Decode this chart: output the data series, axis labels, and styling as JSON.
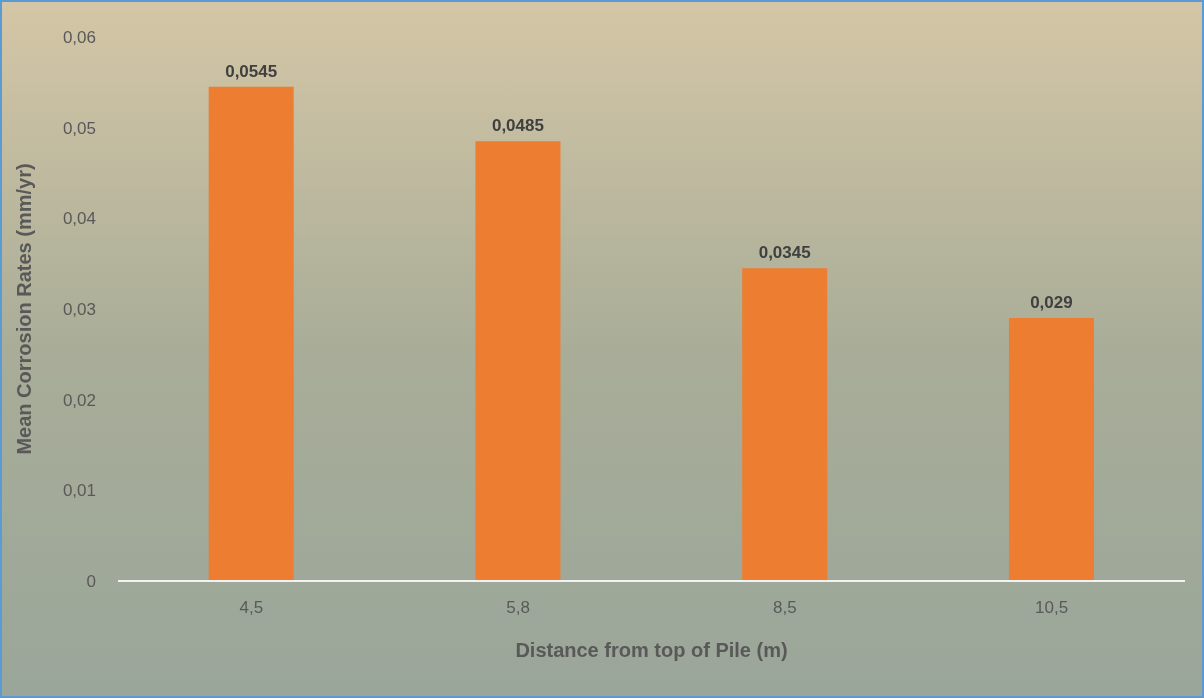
{
  "chart_data": {
    "type": "bar",
    "xlabel": "Distance from top of Pile (m)",
    "ylabel": "Mean Corrosion Rates (mm/yr)",
    "categories": [
      "4,5",
      "5,8",
      "8,5",
      "10,5"
    ],
    "values": [
      0.0545,
      0.0485,
      0.0345,
      0.029
    ],
    "value_labels": [
      "0,0545",
      "0,0485",
      "0,0345",
      "0,029"
    ],
    "color": "#ed7d31",
    "ylim": [
      0,
      0.06
    ],
    "yticks": [
      {
        "value": 0,
        "label": "0"
      },
      {
        "value": 0.01,
        "label": "0,01"
      },
      {
        "value": 0.02,
        "label": "0,02"
      },
      {
        "value": 0.03,
        "label": "0,03"
      },
      {
        "value": 0.04,
        "label": "0,04"
      },
      {
        "value": 0.05,
        "label": "0,05"
      },
      {
        "value": 0.06,
        "label": "0,06"
      }
    ],
    "grid": false,
    "legend": false
  }
}
